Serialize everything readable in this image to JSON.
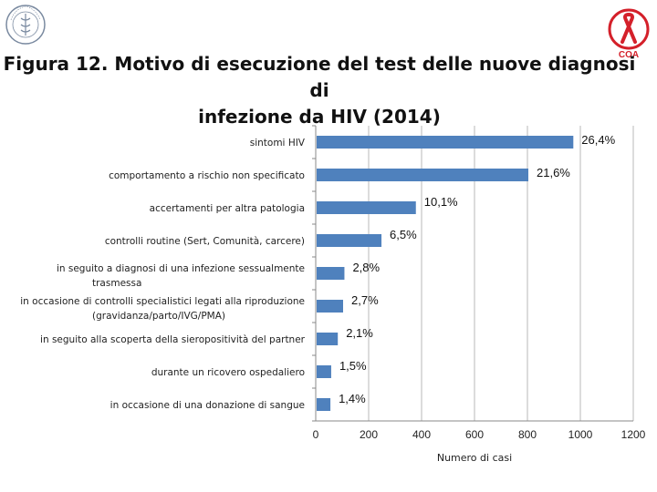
{
  "header": {
    "title_line1": "Figura 12. Motivo di esecuzione del test delle nuove diagnosi di",
    "title_line2": "infezione da HIV (2014)",
    "logo_left_icon": "istituto-superiore-sanita-seal-icon",
    "logo_right_icon": "centro-operativo-aids-ribbon-icon",
    "logo_right_text": "COA",
    "logo_right_ring": "Centro Operativo AIDS"
  },
  "colors": {
    "bar": "#4f81bd",
    "grid": "#b8b8b8",
    "logo_red": "#d4202a"
  },
  "chart_data": {
    "type": "bar",
    "orientation": "horizontal",
    "title": "Figura 12. Motivo di esecuzione del test delle nuove diagnosi di infezione da HIV (2014)",
    "xlabel": "Numero di casi",
    "ylabel": "",
    "xlim": [
      0,
      1200
    ],
    "xticks": [
      0,
      200,
      400,
      600,
      800,
      1000,
      1200
    ],
    "grid": "vertical",
    "categories": [
      [
        "sintomi HIV"
      ],
      [
        "comportamento a rischio non specificato"
      ],
      [
        "accertamenti per altra patologia"
      ],
      [
        "controlli routine (Sert, Comunità, carcere)"
      ],
      [
        "in seguito a diagnosi di una infezione sessualmente",
        "trasmessa"
      ],
      [
        "in occasione di controlli specialistici legati alla riproduzione",
        "(gravidanza/parto/IVG/PMA)"
      ],
      [
        "in seguito alla scoperta della sieropositività del partner"
      ],
      [
        "durante un ricovero ospedaliero"
      ],
      [
        "in occasione di una donazione di sangue"
      ]
    ],
    "values": [
      970,
      800,
      375,
      245,
      105,
      100,
      80,
      55,
      52
    ],
    "value_labels": [
      "26,4%",
      "21,6%",
      "10,1%",
      "6,5%",
      "2,8%",
      "2,7%",
      "2,1%",
      "1,5%",
      "1,4%"
    ]
  }
}
